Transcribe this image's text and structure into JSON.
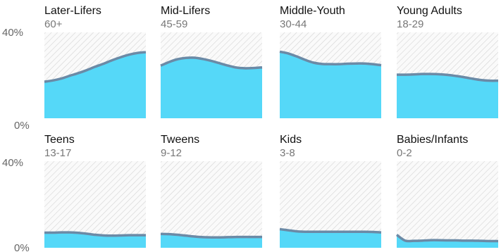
{
  "colors": {
    "area_fill": "#55d8f8",
    "line": "#6b8aa6",
    "hatch_line": "#d4d4d4",
    "hatch_bg": "#fafafa"
  },
  "chart_data": {
    "type": "area",
    "layout": "small-multiples-2x4",
    "x": [
      0,
      1,
      2,
      3,
      4,
      5,
      6,
      7,
      8,
      9,
      10,
      11,
      12
    ],
    "ylim": [
      0,
      40
    ],
    "y_unit": "%",
    "yticks": [
      "40%",
      "0%"
    ],
    "grid": false,
    "panels": [
      {
        "title": "Later-Lifers",
        "subtitle": "60+",
        "values": [
          17,
          17.6,
          18.5,
          19.8,
          21,
          22.4,
          24,
          25.4,
          27,
          28.4,
          29.6,
          30.4,
          30.8
        ]
      },
      {
        "title": "Mid-Lifers",
        "subtitle": "45-59",
        "values": [
          24.5,
          26.2,
          27.5,
          28.1,
          28.2,
          27.6,
          26.7,
          25.6,
          24.5,
          23.6,
          23.3,
          23.4,
          23.7
        ]
      },
      {
        "title": "Middle-Youth",
        "subtitle": "30-44",
        "values": [
          31,
          30.2,
          28.8,
          27.2,
          25.9,
          25.3,
          25.2,
          25.2,
          25.4,
          25.5,
          25.5,
          25.2,
          24.7
        ]
      },
      {
        "title": "Young Adults",
        "subtitle": "18-29",
        "values": [
          20.3,
          20.3,
          20.4,
          20.6,
          20.6,
          20.5,
          20.2,
          19.7,
          19.1,
          18.4,
          17.8,
          17.5,
          17.5
        ]
      },
      {
        "title": "Teens",
        "subtitle": "13-17",
        "values": [
          7,
          7,
          7.1,
          7.1,
          6.9,
          6.5,
          6,
          5.7,
          5.6,
          5.7,
          5.8,
          5.8,
          5.8
        ]
      },
      {
        "title": "Tweens",
        "subtitle": "9-12",
        "values": [
          6.4,
          6.3,
          6,
          5.6,
          5.2,
          4.9,
          4.8,
          4.8,
          4.9,
          5,
          5,
          5,
          5
        ]
      },
      {
        "title": "Kids",
        "subtitle": "3-8",
        "values": [
          8.6,
          8.1,
          7.6,
          7.4,
          7.4,
          7.4,
          7.4,
          7.4,
          7.4,
          7.4,
          7.4,
          7.3,
          7.1
        ]
      },
      {
        "title": "Babies/Infants",
        "subtitle": "0-2",
        "values": [
          6,
          3.3,
          3.2,
          3.3,
          3.5,
          3.5,
          3.4,
          3.4,
          3.3,
          3.3,
          3.2,
          3.1,
          3.1
        ]
      }
    ]
  }
}
